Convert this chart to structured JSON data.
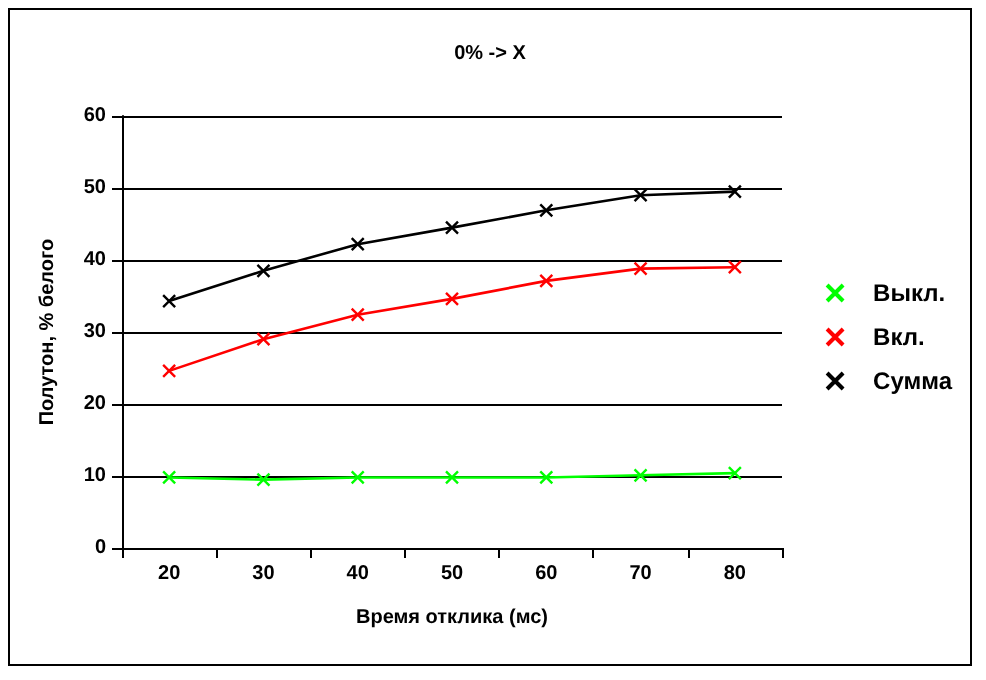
{
  "chart_data": {
    "type": "line",
    "title": "0% -> X",
    "xlabel": "Время отклика (мс)",
    "ylabel": "Полутон, % белого",
    "categories": [
      "20",
      "30",
      "40",
      "50",
      "60",
      "70",
      "80"
    ],
    "series": [
      {
        "name": "Выкл.",
        "color": "#00ff00",
        "values": [
          9.8,
          9.5,
          9.8,
          9.8,
          9.8,
          10.1,
          10.4
        ]
      },
      {
        "name": "Вкл.",
        "color": "#ff0000",
        "values": [
          24.6,
          29.0,
          32.4,
          34.6,
          37.1,
          38.8,
          39.0
        ]
      },
      {
        "name": "Сумма",
        "color": "#000000",
        "values": [
          34.3,
          38.5,
          42.2,
          44.5,
          46.9,
          49.0,
          49.5
        ]
      }
    ],
    "ylim": [
      0,
      60
    ],
    "yticks": [
      0,
      10,
      20,
      30,
      40,
      50,
      60
    ],
    "grid": "y",
    "legend": "right",
    "marker": "cross",
    "line_style": "solid"
  }
}
